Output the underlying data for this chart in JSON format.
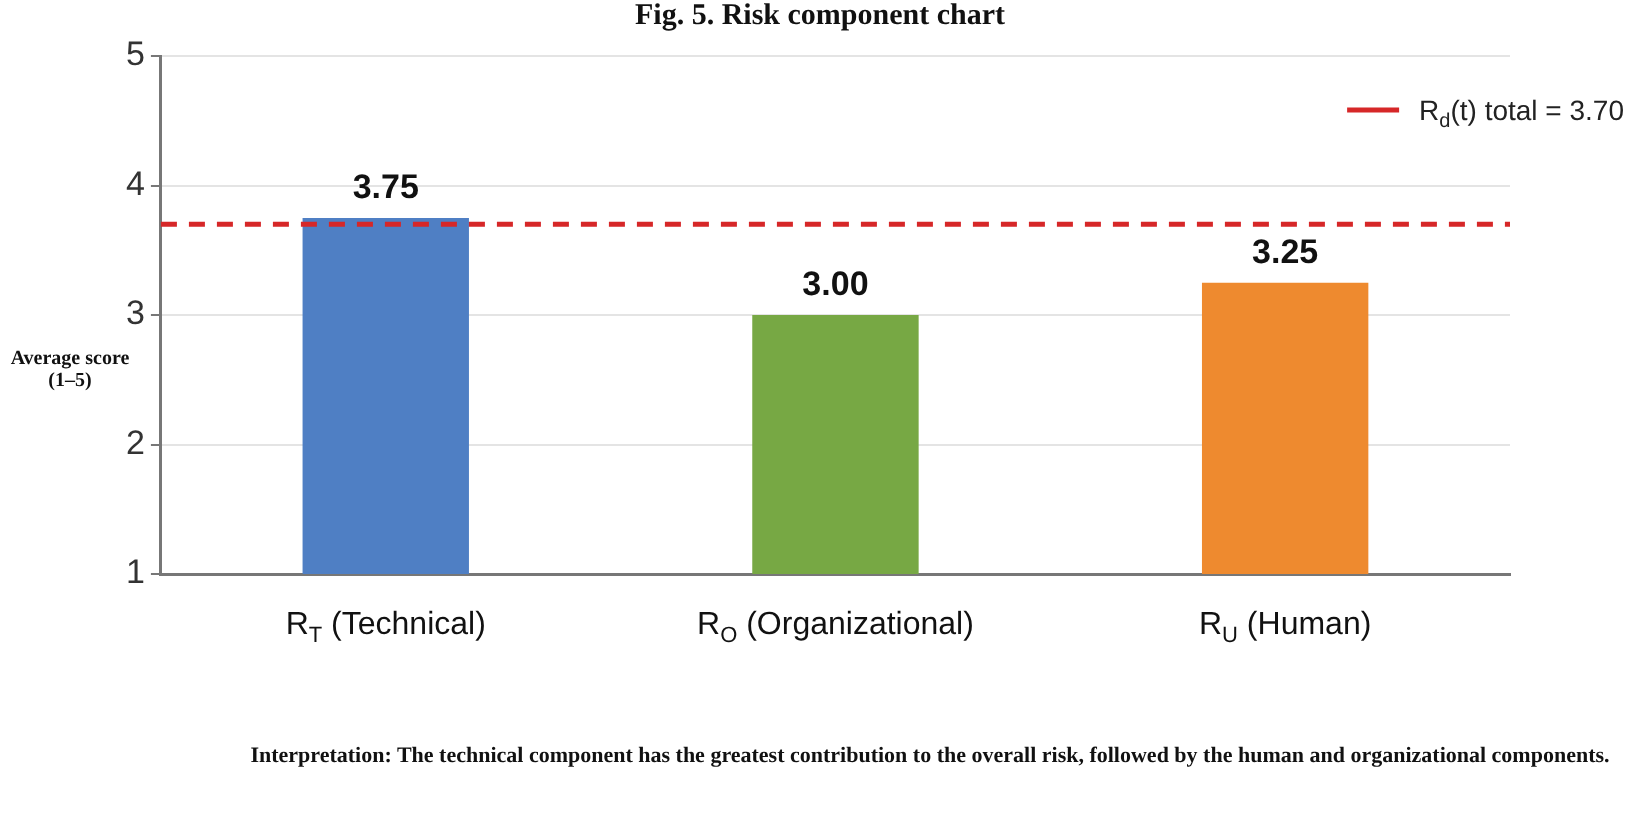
{
  "chart_data": {
    "type": "bar",
    "title": "Fig. 5. Risk component chart",
    "ylabel": "Average score (1–5)",
    "categories": [
      "R$_{T}$ (Technical)",
      "R$_{O}$ (Organizational)",
      "R$_{U}$ (Human)"
    ],
    "values": [
      3.75,
      3.0,
      3.25
    ],
    "colors": [
      "#4f7fc4",
      "#77a844",
      "#ee8a2f"
    ],
    "value_labels": [
      "3.75",
      "3.00",
      "3.25"
    ],
    "ylim": [
      1,
      5
    ],
    "yticks": [
      1,
      2,
      3,
      4,
      5
    ],
    "grid": "y",
    "legend": "top right",
    "ref_lines": [
      {
        "axis": "y",
        "value": 3.7,
        "label": "R$_{d}$(t) total = 3.70",
        "color": "#d62728",
        "line_style": "dashed"
      }
    ],
    "annotations": [
      "Interpretation: The technical component has the greatest contribution to the overall risk, followed by the human and organizational components."
    ]
  }
}
